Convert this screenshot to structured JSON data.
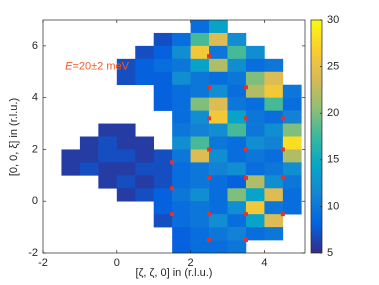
{
  "chart_data": {
    "type": "heatmap",
    "xlabel": "[ζ, ζ, 0] in (r.l.u.)",
    "ylabel": "[0, 0, ξ] in (r.l.u.)",
    "annotation": {
      "symbol": "E",
      "text": "=20±2 meV",
      "x": -1.4,
      "y": 5.2,
      "color": "#f05a28"
    },
    "xlim": [
      -2,
      5.1
    ],
    "ylim": [
      -2,
      7
    ],
    "xticks": [
      -2,
      0,
      2,
      4
    ],
    "yticks": [
      -2,
      0,
      2,
      4,
      6
    ],
    "clim": [
      5,
      30
    ],
    "cticks": [
      5,
      10,
      15,
      20,
      25,
      30
    ],
    "colormap": [
      "#352a87",
      "#0363e1",
      "#1485d4",
      "#06a7c6",
      "#38b99e",
      "#92bf73",
      "#d9ba56",
      "#fcce2e",
      "#f9fb0e"
    ],
    "x": [
      -1.75,
      -1.25,
      -0.75,
      -0.25,
      0.25,
      0.75,
      1.25,
      1.75,
      2.25,
      2.75,
      3.25,
      3.75,
      4.25,
      4.75
    ],
    "y": [
      6.75,
      6.25,
      5.75,
      5.25,
      4.75,
      4.25,
      3.75,
      3.25,
      2.75,
      2.25,
      1.75,
      1.25,
      0.75,
      0.25,
      -0.25,
      -0.75,
      -1.25,
      -1.75
    ],
    "z": [
      [
        null,
        null,
        null,
        null,
        null,
        null,
        null,
        null,
        9,
        14,
        null,
        null,
        null,
        null
      ],
      [
        null,
        null,
        null,
        null,
        null,
        null,
        7,
        9,
        18,
        24,
        12,
        null,
        null,
        null
      ],
      [
        null,
        null,
        null,
        null,
        null,
        7,
        8,
        12,
        26,
        10,
        18,
        12,
        null,
        null
      ],
      [
        null,
        null,
        null,
        null,
        7,
        8,
        9,
        10,
        14,
        22,
        12,
        9,
        10,
        null
      ],
      [
        null,
        null,
        null,
        null,
        7,
        8,
        8,
        12,
        10,
        9,
        10,
        20,
        24,
        null
      ],
      [
        null,
        null,
        null,
        null,
        null,
        null,
        8,
        9,
        10,
        12,
        9,
        22,
        26,
        10
      ],
      [
        null,
        null,
        null,
        null,
        null,
        null,
        8,
        9,
        20,
        24,
        10,
        9,
        18,
        9
      ],
      [
        null,
        null,
        null,
        null,
        null,
        null,
        null,
        9,
        12,
        26,
        14,
        10,
        9,
        11
      ],
      [
        null,
        null,
        null,
        6,
        6,
        null,
        null,
        10,
        11,
        12,
        18,
        10,
        12,
        20
      ],
      [
        null,
        null,
        6,
        7,
        6,
        6,
        null,
        12,
        18,
        10,
        9,
        12,
        11,
        28
      ],
      [
        null,
        6,
        6,
        7,
        7,
        6,
        7,
        10,
        24,
        12,
        9,
        10,
        9,
        22
      ],
      [
        null,
        6,
        7,
        6,
        6,
        7,
        7,
        9,
        10,
        11,
        12,
        9,
        10,
        12
      ],
      [
        null,
        null,
        null,
        6,
        7,
        6,
        7,
        9,
        10,
        9,
        8,
        22,
        12,
        10
      ],
      [
        null,
        null,
        null,
        null,
        6,
        7,
        8,
        10,
        12,
        9,
        20,
        14,
        24,
        9
      ],
      [
        null,
        null,
        null,
        null,
        null,
        null,
        8,
        9,
        10,
        9,
        12,
        26,
        10,
        9
      ],
      [
        null,
        null,
        null,
        null,
        null,
        null,
        7,
        9,
        10,
        12,
        9,
        14,
        24,
        null
      ],
      [
        null,
        null,
        null,
        null,
        null,
        null,
        null,
        8,
        9,
        10,
        11,
        9,
        10,
        null
      ],
      [
        null,
        null,
        null,
        null,
        null,
        null,
        null,
        8,
        9,
        9,
        10,
        null,
        null,
        null
      ]
    ],
    "points": {
      "color": "#e8312a",
      "x": [
        1.5,
        1.5,
        1.5,
        2.5,
        2.5,
        2.5,
        2.5,
        2.5,
        2.5,
        2.5,
        2.5,
        3.5,
        3.5,
        3.5,
        3.5,
        3.5,
        3.5,
        4.5,
        4.5,
        4.5,
        4.5
      ],
      "y": [
        1.5,
        0.5,
        -0.5,
        5.6,
        4.4,
        3.2,
        2.0,
        0.9,
        -0.5,
        -1.5,
        5.6,
        4.4,
        3.2,
        2.0,
        0.9,
        -0.5,
        -1.5,
        3.2,
        2.0,
        0.9,
        -0.5
      ]
    }
  }
}
